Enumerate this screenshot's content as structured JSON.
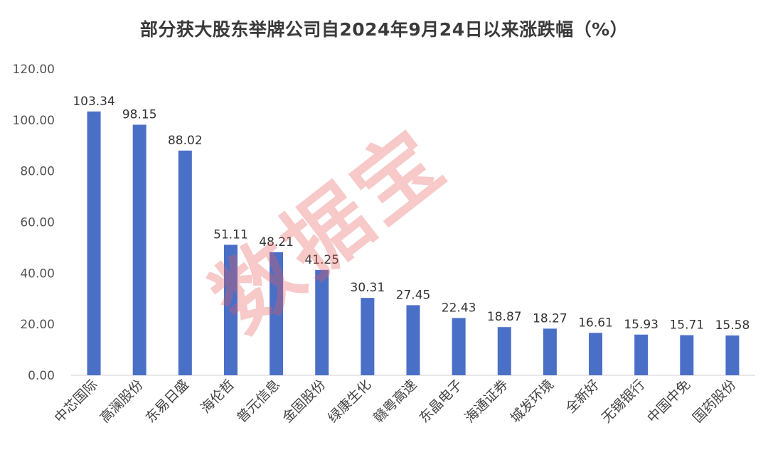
{
  "chart_data": {
    "type": "bar",
    "title": "部分获大股东举牌公司自2024年9月24日以来涨跌幅（%）",
    "categories": [
      "中芯国际",
      "高澜股份",
      "东易日盛",
      "海伦哲",
      "普元信息",
      "金固股份",
      "绿康生化",
      "赣粤高速",
      "东晶电子",
      "海通证券",
      "城发环境",
      "全新好",
      "无锡银行",
      "中国中免",
      "国药股份"
    ],
    "values": [
      103.34,
      98.15,
      88.02,
      51.11,
      48.21,
      41.25,
      30.31,
      27.45,
      22.43,
      18.87,
      18.27,
      16.61,
      15.93,
      15.71,
      15.58
    ],
    "data_labels": [
      "103.34",
      "98.15",
      "88.02",
      "51.11",
      "48.21",
      "41.25",
      "30.31",
      "27.45",
      "22.43",
      "18.87",
      "18.27",
      "16.61",
      "15.93",
      "15.71",
      "15.58"
    ],
    "y_ticks": [
      "0.00",
      "20.00",
      "40.00",
      "60.00",
      "80.00",
      "100.00",
      "120.00"
    ],
    "ylim": [
      0,
      120
    ],
    "xlabel": "",
    "ylabel": "",
    "grid": false,
    "bar_color": "#4a6fc7"
  },
  "watermark": "数据宝"
}
